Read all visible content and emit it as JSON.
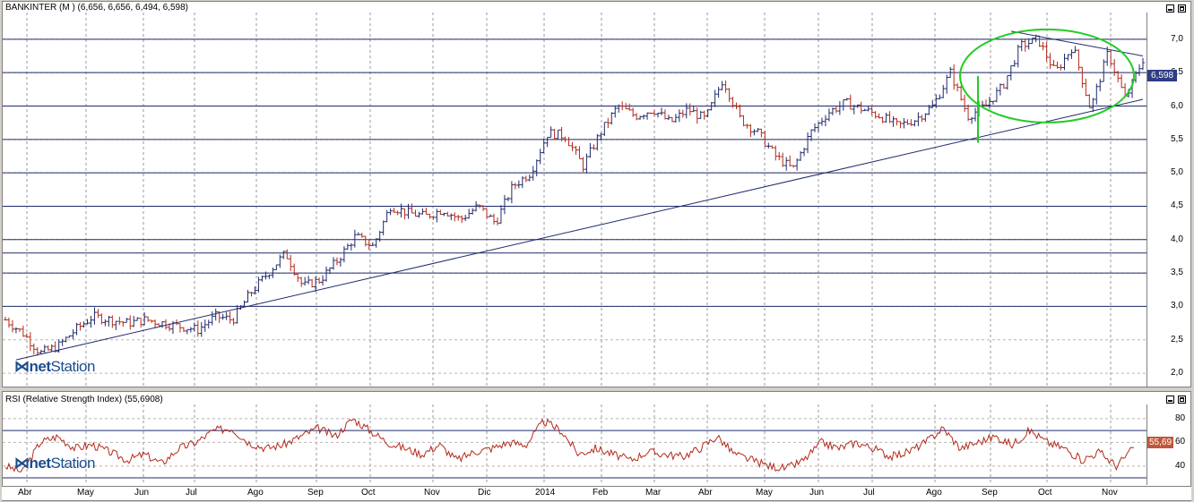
{
  "colors": {
    "background": "#d4d0c8",
    "gridline": "#1f2a6b",
    "candle_up": "#1f2a6b",
    "candle_down": "#b22a1a",
    "trendline": "#1f2a6b",
    "rsi_line": "#b22a1a",
    "ellipse": "#22cc22",
    "vline": "#22cc22",
    "price_tag_bg": "#2e3d84",
    "rsi_tag_bg": "#c0573a"
  },
  "icons": {
    "minimize": "minimize-icon",
    "maximize": "maximize-icon"
  },
  "price_panel": {
    "title": "BANKINTER (M ) (6,656, 6,656, 6,494, 6,598)",
    "last_price_tag": "6,598",
    "logo_net": "net",
    "logo_station": "Station"
  },
  "rsi_panel": {
    "title": "RSI (Relative Strength Index) (55,6908)",
    "last_value_tag": "55,69",
    "logo_net": "net",
    "logo_station": "Station"
  },
  "chart_data": [
    {
      "type": "candlestick",
      "title": "BANKINTER (M ) (6,656, 6,656, 6,494, 6,598)",
      "ylim": [
        1.8,
        7.4
      ],
      "y_ticks": [
        "7,0",
        "6,5",
        "6,0",
        "5,5",
        "5,0",
        "4,5",
        "4,0",
        "3,5",
        "3,0",
        "2,5",
        "2,0"
      ],
      "y_tick_values": [
        7.0,
        6.5,
        6.0,
        5.5,
        5.0,
        4.5,
        4.0,
        3.5,
        3.0,
        2.5,
        2.0
      ],
      "horizontal_lines": [
        7.0,
        6.5,
        6.0,
        5.5,
        5.0,
        4.5,
        4.0,
        3.8,
        3.5,
        3.0
      ],
      "x_labels": [
        "Abr",
        "May",
        "Jun",
        "Jul",
        "Ago",
        "Sep",
        "Oct",
        "Nov",
        "Dic",
        "2014",
        "Feb",
        "Mar",
        "Abr",
        "May",
        "Jun",
        "Jul",
        "Ago",
        "Sep",
        "Oct",
        "Nov"
      ],
      "price_path": [
        2.8,
        2.6,
        2.3,
        2.4,
        2.65,
        2.85,
        2.8,
        2.75,
        2.8,
        2.75,
        2.7,
        2.65,
        2.85,
        2.8,
        3.2,
        3.5,
        3.8,
        3.3,
        3.4,
        3.7,
        4.05,
        3.9,
        4.5,
        4.4,
        4.35,
        4.45,
        4.3,
        4.5,
        4.25,
        4.8,
        5.0,
        5.6,
        5.55,
        5.1,
        5.6,
        6.0,
        5.85,
        5.95,
        5.75,
        5.95,
        5.8,
        6.4,
        5.8,
        5.6,
        5.25,
        5.05,
        5.6,
        5.9,
        6.05,
        5.95,
        5.85,
        5.7,
        5.8,
        6.0,
        6.5,
        5.85,
        6.0,
        6.3,
        6.9,
        7.0,
        6.5,
        6.9,
        5.95,
        6.8,
        6.1,
        6.7
      ],
      "last_close": 6.598,
      "trendlines": [
        {
          "from": [
            "Abr",
            "2,2"
          ],
          "to": [
            "Nov",
            "6,1"
          ]
        },
        {
          "from": [
            "Sep",
            "7,1"
          ],
          "to": [
            "Nov",
            "6,75"
          ]
        }
      ]
    },
    {
      "type": "line",
      "title": "RSI (Relative Strength Index) (55,6908)",
      "ylim": [
        24,
        92
      ],
      "y_ticks": [
        "80",
        "60",
        "40"
      ],
      "y_tick_values": [
        80,
        60,
        40
      ],
      "horizontal_lines": [
        70,
        30
      ],
      "values": [
        40,
        35,
        60,
        65,
        55,
        58,
        52,
        45,
        50,
        42,
        55,
        60,
        70,
        72,
        60,
        55,
        58,
        65,
        72,
        65,
        80,
        70,
        60,
        55,
        50,
        58,
        45,
        52,
        55,
        60,
        58,
        78,
        70,
        50,
        55,
        50,
        45,
        52,
        50,
        48,
        55,
        65,
        50,
        45,
        40,
        38,
        45,
        60,
        55,
        60,
        55,
        48,
        52,
        60,
        72,
        55,
        60,
        65,
        58,
        70,
        60,
        55,
        45,
        52,
        40,
        55.69
      ],
      "last_value": 55.6908
    }
  ]
}
